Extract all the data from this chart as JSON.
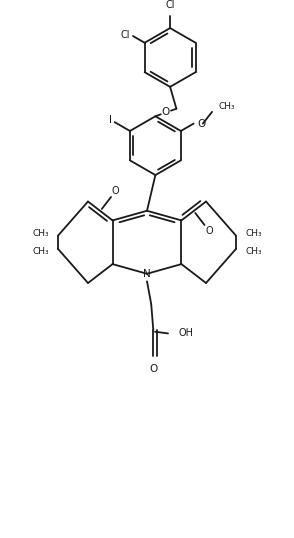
{
  "bg": "#ffffff",
  "lc": "#1a1a1a",
  "lw": 1.3,
  "fs": 7.0,
  "figsize": [
    2.94,
    5.38
  ],
  "dpi": 100,
  "xlim": [
    -3.5,
    3.5
  ],
  "ylim": [
    -5.8,
    6.5
  ]
}
